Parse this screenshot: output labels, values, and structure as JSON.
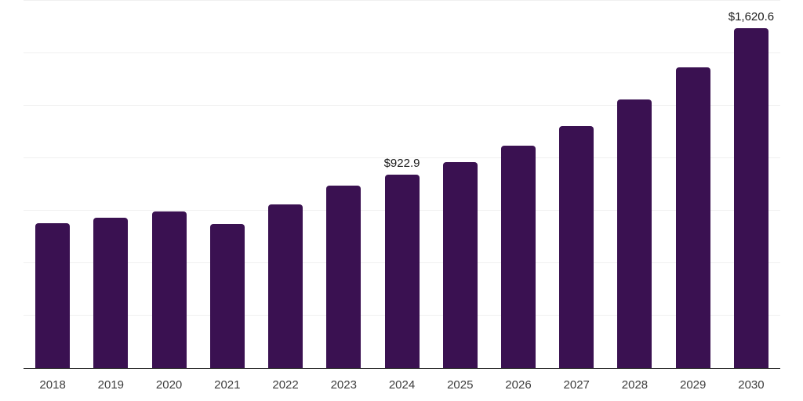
{
  "chart_data": {
    "type": "bar",
    "title": "",
    "xlabel": "",
    "ylabel": "",
    "categories": [
      "2018",
      "2019",
      "2020",
      "2021",
      "2022",
      "2023",
      "2024",
      "2025",
      "2026",
      "2027",
      "2028",
      "2029",
      "2030"
    ],
    "values": [
      690,
      717,
      746,
      687,
      781,
      870,
      922.9,
      980,
      1059,
      1154,
      1279,
      1433,
      1620.6
    ],
    "data_labels": {
      "2024": "$922.9",
      "2030": "$1,620.6"
    },
    "ylim": [
      0,
      1750
    ],
    "gridline_step": 250,
    "grid": "horizontal-only",
    "legend": "none",
    "colors": {
      "bar": "#3A1151",
      "axis_line": "#333333",
      "gridline": "#f0f0f0",
      "data_label_text": "#1a1a1a",
      "tick_label_text": "#3d3d3d",
      "background": "#ffffff"
    }
  }
}
